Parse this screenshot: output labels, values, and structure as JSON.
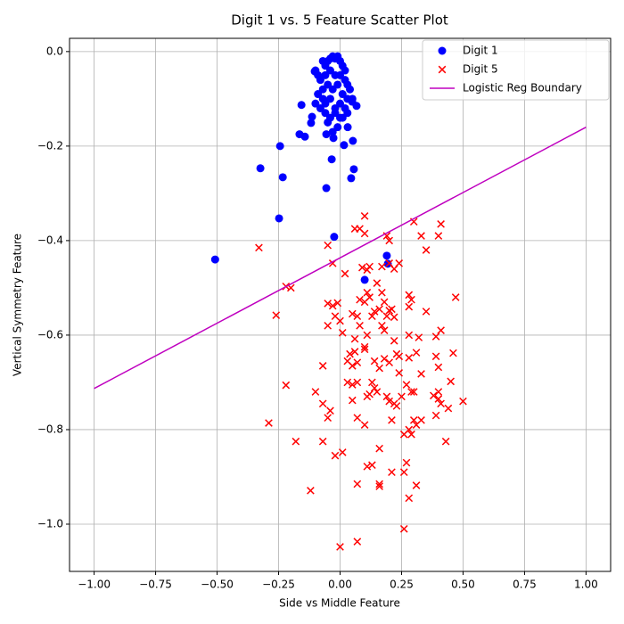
{
  "chart_data": {
    "type": "scatter",
    "title": "Digit 1 vs. 5 Feature Scatter Plot",
    "x_label": "Side vs Middle Feature",
    "y_label": "Vertical Symmetry Feature",
    "xlim": [
      -1.1,
      1.1
    ],
    "ylim": [
      -1.1,
      0.028
    ],
    "xticks": [
      {
        "value": -1.0,
        "label": "−1.00"
      },
      {
        "value": -0.75,
        "label": "−0.75"
      },
      {
        "value": -0.5,
        "label": "−0.50"
      },
      {
        "value": -0.25,
        "label": "−0.25"
      },
      {
        "value": 0,
        "label": "0.00"
      },
      {
        "value": 0.25,
        "label": "0.25"
      },
      {
        "value": 0.5,
        "label": "0.50"
      },
      {
        "value": 0.75,
        "label": "0.75"
      },
      {
        "value": 1.0,
        "label": "1.00"
      }
    ],
    "yticks": [
      {
        "value": -1.0,
        "label": "−1.0"
      },
      {
        "value": -0.8,
        "label": "−0.8"
      },
      {
        "value": -0.6,
        "label": "−0.6"
      },
      {
        "value": -0.4,
        "label": "−0.4"
      },
      {
        "value": -0.2,
        "label": "−0.2"
      },
      {
        "value": 0,
        "label": "0.0"
      }
    ],
    "grid": true,
    "legend": "upper right",
    "series": [
      {
        "name": "Digit 1",
        "color": "#0000ff",
        "marker": "circle",
        "x": [
          -0.508,
          -0.324,
          -0.244,
          -0.233,
          -0.248,
          -0.157,
          -0.143,
          -0.165,
          -0.118,
          -0.114,
          -0.103,
          -0.056,
          -0.056,
          -0.034,
          -0.024,
          -0.027,
          0.016,
          0.031,
          0.045,
          0.056,
          0.052,
          0.067,
          0.049,
          0.19,
          0.194,
          0.1,
          -0.07,
          -0.06,
          -0.05,
          -0.04,
          -0.03,
          -0.02,
          -0.01,
          0,
          0.01,
          0.02,
          -0.09,
          -0.08,
          -0.06,
          -0.04,
          -0.02,
          0,
          0.02,
          0.03,
          -0.09,
          -0.07,
          -0.05,
          -0.03,
          -0.01,
          0.01,
          0.03,
          0.05,
          -0.1,
          -0.08,
          -0.06,
          -0.04,
          -0.02,
          0,
          0.02,
          0.03,
          -0.04,
          -0.02,
          0,
          -0.05,
          -0.01,
          -0.03,
          0.01,
          -0.07,
          -0.06,
          0.04,
          -0.1
        ],
        "values": [
          -0.44,
          -0.247,
          -0.2,
          -0.266,
          -0.353,
          -0.113,
          -0.18,
          -0.175,
          -0.151,
          -0.138,
          -0.042,
          -0.175,
          -0.289,
          -0.228,
          -0.392,
          -0.183,
          -0.198,
          -0.16,
          -0.268,
          -0.249,
          -0.189,
          -0.115,
          -0.106,
          -0.432,
          -0.449,
          -0.483,
          -0.02,
          -0.03,
          -0.02,
          -0.015,
          -0.01,
          -0.015,
          -0.01,
          -0.02,
          -0.03,
          -0.04,
          -0.05,
          -0.06,
          -0.05,
          -0.04,
          -0.05,
          -0.05,
          -0.06,
          -0.07,
          -0.09,
          -0.08,
          -0.07,
          -0.08,
          -0.07,
          -0.09,
          -0.1,
          -0.1,
          -0.11,
          -0.12,
          -0.11,
          -0.1,
          -0.12,
          -0.11,
          -0.12,
          -0.13,
          -0.14,
          -0.13,
          -0.14,
          -0.15,
          -0.16,
          -0.17,
          -0.14,
          -0.1,
          -0.13,
          -0.08,
          -0.04
        ]
      },
      {
        "name": "Digit 5",
        "color": "#ff0000",
        "marker": "x",
        "x": [
          -0.33,
          -0.26,
          -0.22,
          -0.2,
          -0.22,
          -0.29,
          -0.18,
          -0.12,
          -0.07,
          -0.1,
          -0.07,
          -0.07,
          -0.05,
          -0.04,
          -0.02,
          0.01,
          0,
          0.07,
          -0.05,
          -0.03,
          -0.05,
          -0.03,
          -0.01,
          -0.02,
          -0.05,
          0,
          0.01,
          0.02,
          0.06,
          0.1,
          0.08,
          0.1,
          0.09,
          0.11,
          0.12,
          0.11,
          0.12,
          0.08,
          0.1,
          0.15,
          0.17,
          0.19,
          0.2,
          0.22,
          0.24,
          0.2,
          0.17,
          0.18,
          0.14,
          0.13,
          0.16,
          0.2,
          0.21,
          0.22,
          0.19,
          0.07,
          0.05,
          0.08,
          0.06,
          0.11,
          0.17,
          0.18,
          0.22,
          0.1,
          0.1,
          0.06,
          0.04,
          0.03,
          0.05,
          0.07,
          0.14,
          0.18,
          0.2,
          0.23,
          0.24,
          0.24,
          0.16,
          0.03,
          0.05,
          0.07,
          0.13,
          0.14,
          0.15,
          0.11,
          0.12,
          0.05,
          0.07,
          0.1,
          0.19,
          0.2,
          0.21,
          0.22,
          0.23,
          0.25,
          0.27,
          0.29,
          0.3,
          0.28,
          0.3,
          0.31,
          0.33,
          0.26,
          0.29,
          0.16,
          0.11,
          0.13,
          0.07,
          0.16,
          0.16,
          0.21,
          0.26,
          0.27,
          0.31,
          0.28,
          0.26,
          0.3,
          0.33,
          0.35,
          0.4,
          0.41,
          0.28,
          0.29,
          0.28,
          0.35,
          0.47,
          0.28,
          0.32,
          0.39,
          0.41,
          0.31,
          0.39,
          0.46,
          0.28,
          0.33,
          0.4,
          0.45,
          0.38,
          0.4,
          0.4,
          0.41,
          0.44,
          0.39,
          0.5,
          0.43
        ],
        "values": [
          -0.415,
          -0.558,
          -0.497,
          -0.5,
          -0.706,
          -0.786,
          -0.825,
          -0.929,
          -0.825,
          -0.72,
          -0.745,
          -0.665,
          -0.775,
          -0.76,
          -0.855,
          -0.848,
          -1.048,
          -1.037,
          -0.41,
          -0.448,
          -0.533,
          -0.538,
          -0.532,
          -0.56,
          -0.58,
          -0.57,
          -0.595,
          -0.47,
          -0.375,
          -0.348,
          -0.375,
          -0.385,
          -0.457,
          -0.462,
          -0.455,
          -0.51,
          -0.52,
          -0.525,
          -0.53,
          -0.49,
          -0.455,
          -0.39,
          -0.4,
          -0.46,
          -0.448,
          -0.448,
          -0.51,
          -0.53,
          -0.55,
          -0.56,
          -0.545,
          -0.548,
          -0.545,
          -0.562,
          -0.56,
          -0.56,
          -0.555,
          -0.58,
          -0.608,
          -0.6,
          -0.58,
          -0.59,
          -0.612,
          -0.625,
          -0.63,
          -0.635,
          -0.64,
          -0.655,
          -0.665,
          -0.658,
          -0.655,
          -0.65,
          -0.658,
          -0.64,
          -0.645,
          -0.68,
          -0.67,
          -0.7,
          -0.705,
          -0.7,
          -0.7,
          -0.712,
          -0.72,
          -0.73,
          -0.725,
          -0.738,
          -0.775,
          -0.79,
          -0.73,
          -0.74,
          -0.78,
          -0.745,
          -0.75,
          -0.73,
          -0.705,
          -0.72,
          -0.72,
          -0.8,
          -0.78,
          -0.79,
          -0.78,
          -0.81,
          -0.81,
          -0.84,
          -0.878,
          -0.875,
          -0.915,
          -0.915,
          -0.92,
          -0.89,
          -0.89,
          -0.87,
          -0.918,
          -0.945,
          -1.01,
          -0.36,
          -0.39,
          -0.42,
          -0.39,
          -0.365,
          -0.515,
          -0.525,
          -0.54,
          -0.55,
          -0.52,
          -0.6,
          -0.605,
          -0.603,
          -0.59,
          -0.637,
          -0.645,
          -0.638,
          -0.648,
          -0.682,
          -0.668,
          -0.698,
          -0.728,
          -0.72,
          -0.735,
          -0.745,
          -0.755,
          -0.77,
          -0.74,
          -0.825
        ]
      },
      {
        "name": "Logistic Reg Boundary",
        "color": "#bf00bf",
        "marker": "line",
        "x": [
          -1.0,
          1.0
        ],
        "values": [
          -0.713,
          -0.16
        ]
      }
    ]
  }
}
